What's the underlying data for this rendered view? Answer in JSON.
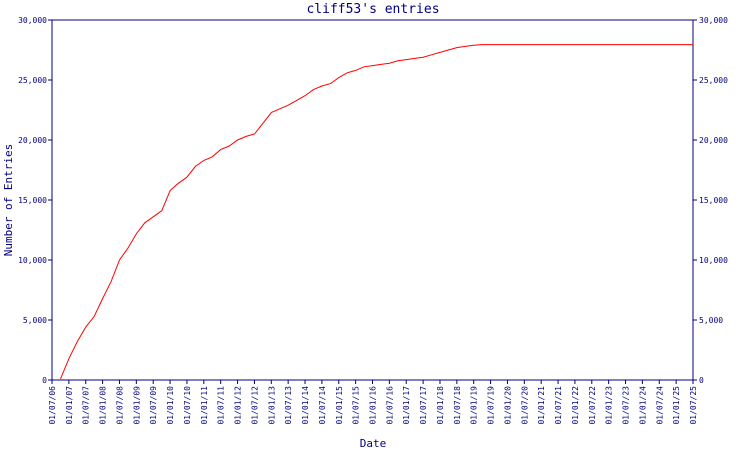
{
  "chart_data": {
    "type": "line",
    "title": "cliff53's entries",
    "xlabel": "Date",
    "ylabel": "Number of Entries",
    "ylim": [
      0,
      30000
    ],
    "xlim": [
      "2006-07-01",
      "2025-07-01"
    ],
    "grid": false,
    "y_ticks": [
      "0",
      "5,000",
      "10,000",
      "15,000",
      "20,000",
      "25,000",
      "30,000"
    ],
    "x_ticks": [
      "01/07/06",
      "01/01/07",
      "01/07/07",
      "01/01/08",
      "01/07/08",
      "01/01/09",
      "01/07/09",
      "01/01/10",
      "01/07/10",
      "01/01/11",
      "01/07/11",
      "01/01/12",
      "01/07/12",
      "01/01/13",
      "01/07/13",
      "01/01/14",
      "01/07/14",
      "01/01/15",
      "01/07/15",
      "01/01/16",
      "01/07/16",
      "01/01/17",
      "01/07/17",
      "01/01/18",
      "01/07/18",
      "01/01/19",
      "01/07/19",
      "01/01/20",
      "01/07/20",
      "01/01/21",
      "01/07/21",
      "01/01/22",
      "01/07/22",
      "01/01/23",
      "01/07/23",
      "01/01/24",
      "01/07/24",
      "01/01/25",
      "01/07/25"
    ],
    "colors": {
      "axis": "#000080",
      "series": "#ff0000"
    },
    "series": [
      {
        "x": [
          "2006-10-01",
          "2007-01-01",
          "2007-04-01",
          "2007-07-01",
          "2007-10-01",
          "2008-01-01",
          "2008-04-01",
          "2008-07-01",
          "2008-10-01",
          "2009-01-01",
          "2009-04-01",
          "2009-07-01",
          "2009-10-01",
          "2010-01-01",
          "2010-04-01",
          "2010-07-01",
          "2010-10-01",
          "2011-01-01",
          "2011-04-01",
          "2011-07-01",
          "2011-10-01",
          "2012-01-01",
          "2012-04-01",
          "2012-07-01",
          "2012-10-01",
          "2013-01-01",
          "2013-04-01",
          "2013-07-01",
          "2013-10-01",
          "2014-01-01",
          "2014-04-01",
          "2014-07-01",
          "2014-10-01",
          "2015-01-01",
          "2015-04-01",
          "2015-07-01",
          "2015-10-01",
          "2016-01-01",
          "2016-04-01",
          "2016-07-01",
          "2016-10-01",
          "2017-01-01",
          "2017-04-01",
          "2017-07-01",
          "2017-10-01",
          "2018-01-01",
          "2018-04-01",
          "2018-07-01",
          "2018-10-01",
          "2019-01-01",
          "2019-04-01",
          "2019-07-01",
          "2019-10-01",
          "2020-07-01",
          "2021-07-01",
          "2022-07-01",
          "2023-07-01",
          "2024-07-01",
          "2025-07-01"
        ],
        "y": [
          100,
          1800,
          3200,
          4400,
          5300,
          6800,
          8200,
          10000,
          11000,
          12200,
          13100,
          13600,
          14100,
          15800,
          16400,
          16900,
          17800,
          18300,
          18600,
          19200,
          19500,
          20000,
          20300,
          20500,
          21400,
          22300,
          22600,
          22900,
          23300,
          23700,
          24200,
          24500,
          24700,
          25200,
          25600,
          25800,
          26100,
          26200,
          26300,
          26400,
          26600,
          26700,
          26800,
          26900,
          27100,
          27300,
          27500,
          27700,
          27800,
          27900,
          27950,
          27950,
          27950,
          27950,
          27950,
          27950,
          27950,
          27950,
          27950
        ]
      }
    ]
  }
}
